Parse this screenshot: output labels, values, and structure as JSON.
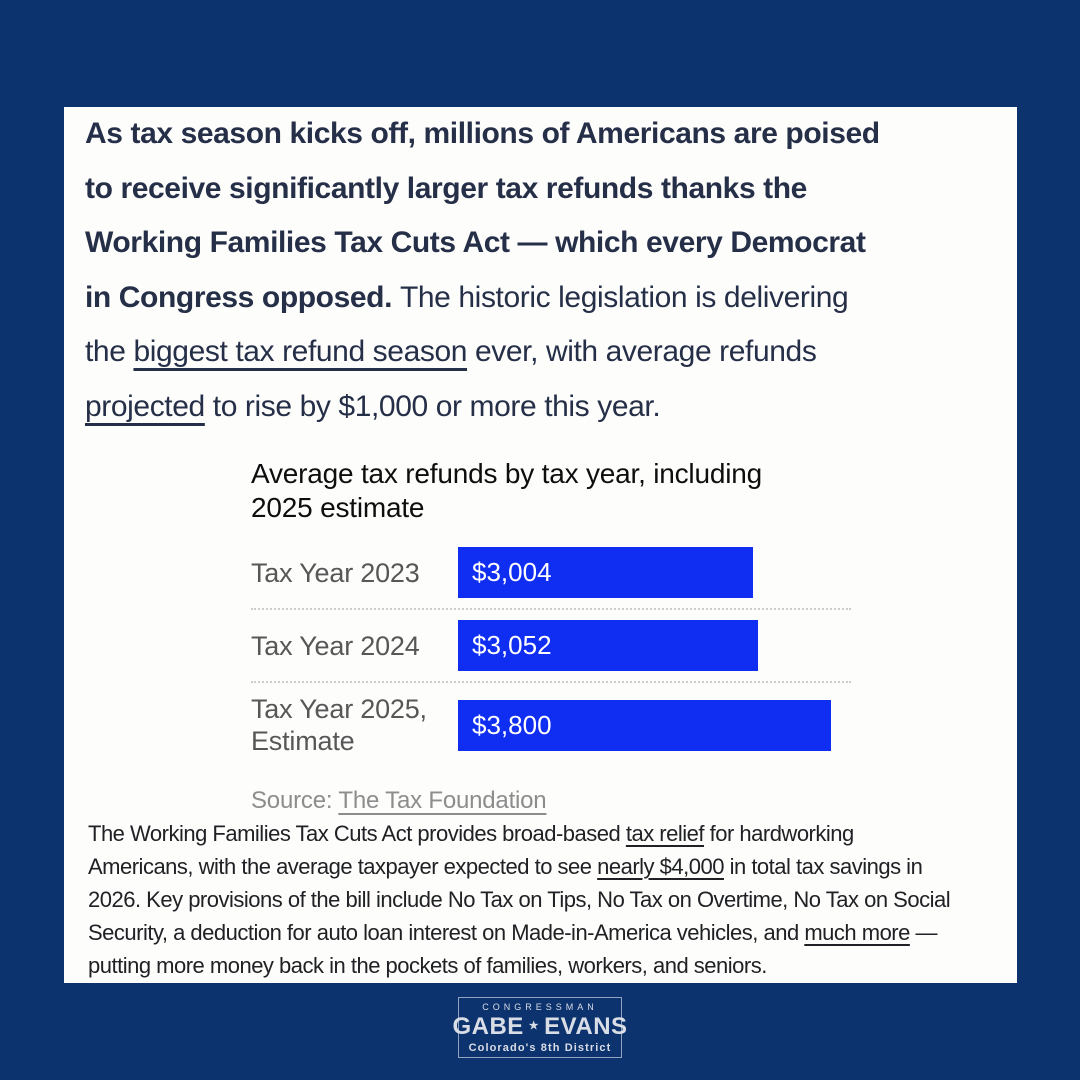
{
  "page": {
    "background_color": "#0d336f",
    "card_color": "#fdfdfc"
  },
  "headline": {
    "lines": [
      [
        {
          "text": "As tax season kicks off, millions of Americans are poised",
          "style": "b"
        }
      ],
      [
        {
          "text": "to receive significantly larger tax refunds thanks the",
          "style": "b"
        }
      ],
      [
        {
          "text": "Working Families Tax Cuts Act — which every Democrat",
          "style": "b"
        }
      ],
      [
        {
          "text": "in Congress opposed. ",
          "style": "b"
        },
        {
          "text": "The historic legislation is delivering",
          "style": "r"
        }
      ],
      [
        {
          "text": "the ",
          "style": "r"
        },
        {
          "text": "biggest tax refund season",
          "style": "u"
        },
        {
          "text": " ever, with average refunds",
          "style": "r"
        }
      ],
      [
        {
          "text": "projected",
          "style": "u"
        },
        {
          "text": " to rise by $1,000 or more this year.",
          "style": "r"
        }
      ]
    ]
  },
  "chart_data": {
    "type": "bar",
    "orientation": "horizontal",
    "title": "Average tax refunds by tax year, including\n2025 estimate",
    "categories": [
      "Tax Year 2023",
      "Tax Year 2024",
      "Tax Year 2025,\nEstimate"
    ],
    "values": [
      3004,
      3052,
      3800
    ],
    "value_labels": [
      "$3,004",
      "$3,052",
      "$3,800"
    ],
    "xlim": [
      0,
      3800
    ],
    "bar_color": "#0f2ef2",
    "grid": "dotted row separators",
    "legend": "none",
    "source_prefix": "Source: ",
    "source_link": "The Tax Foundation"
  },
  "footer": {
    "lines": [
      [
        {
          "text": "The Working Families Tax Cuts Act provides broad-based ",
          "style": "r"
        },
        {
          "text": "tax relief",
          "style": "u"
        },
        {
          "text": " for hardworking",
          "style": "r"
        }
      ],
      [
        {
          "text": "Americans, with the average taxpayer expected to see ",
          "style": "r"
        },
        {
          "text": "nearly $4,000",
          "style": "u"
        },
        {
          "text": " in total tax savings in",
          "style": "r"
        }
      ],
      [
        {
          "text": "2026. Key provisions of the bill include No Tax on Tips, No Tax on Overtime, No Tax on Social",
          "style": "r"
        }
      ],
      [
        {
          "text": "Security, a deduction for auto loan interest on Made-in-America vehicles, and ",
          "style": "r"
        },
        {
          "text": "much more",
          "style": "u"
        },
        {
          "text": " —",
          "style": "r"
        }
      ],
      [
        {
          "text": "putting more money back in the pockets of families, workers, and seniors.",
          "style": "r"
        }
      ]
    ]
  },
  "logo": {
    "eyebrow": "CONGRESSMAN",
    "name_left": "GABE",
    "star": "★",
    "name_right": "EVANS",
    "district": "Colorado's 8th District"
  }
}
